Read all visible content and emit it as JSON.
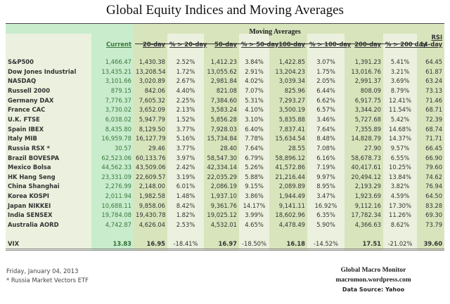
{
  "title": "Global Equity Indices and Moving Averages",
  "group_header": "Moving Averages",
  "columns": {
    "current": "Current",
    "ma20": "20-day",
    "pct20": "% > 20-day",
    "ma50": "50-day",
    "pct50": "% > 50-day",
    "ma100": "100-day",
    "pct100": "% > 100-day",
    "ma200": "200-day",
    "pct200": "% > 200 day",
    "rsi_top": "RSI",
    "rsi": "14-day"
  },
  "rows": [
    {
      "name": "S&P500",
      "current": "1,466.47",
      "ma20": "1,430.38",
      "pct20": "2.52%",
      "ma50": "1,412.23",
      "pct50": "3.84%",
      "ma100": "1,422.85",
      "pct100": "3.07%",
      "ma200": "1,391.23",
      "pct200": "5.41%",
      "rsi": "64.45"
    },
    {
      "name": "Dow Jones Industrial",
      "current": "13,435.21",
      "ma20": "13,208.54",
      "pct20": "1.72%",
      "ma50": "13,055.62",
      "pct50": "2.91%",
      "ma100": "13,204.23",
      "pct100": "1.75%",
      "ma200": "13,016.76",
      "pct200": "3.21%",
      "rsi": "61.87"
    },
    {
      "name": "NASDAQ",
      "current": "3,101.66",
      "ma20": "3,020.89",
      "pct20": "2.67%",
      "ma50": "2,981.84",
      "pct50": "4.02%",
      "ma100": "3,039.34",
      "pct100": "2.05%",
      "ma200": "2,991.37",
      "pct200": "3.69%",
      "rsi": "63.24"
    },
    {
      "name": "Russell 2000",
      "current": "879.15",
      "ma20": "842.06",
      "pct20": "4.40%",
      "ma50": "821.08",
      "pct50": "7.07%",
      "ma100": "825.96",
      "pct100": "6.44%",
      "ma200": "808.09",
      "pct200": "8.79%",
      "rsi": "73.13"
    },
    {
      "name": "Germany DAX",
      "current": "7,776.37",
      "ma20": "7,605.32",
      "pct20": "2.25%",
      "ma50": "7,384.60",
      "pct50": "5.31%",
      "ma100": "7,293.27",
      "pct100": "6.62%",
      "ma200": "6,917.75",
      "pct200": "12.41%",
      "rsi": "71.46"
    },
    {
      "name": "France CAC",
      "current": "3,730.02",
      "ma20": "3,652.09",
      "pct20": "2.13%",
      "ma50": "3,583.24",
      "pct50": "4.10%",
      "ma100": "3,500.19",
      "pct100": "6.57%",
      "ma200": "3,344.20",
      "pct200": "11.54%",
      "rsi": "68.71"
    },
    {
      "name": "U.K. FTSE",
      "current": "6,038.02",
      "ma20": "5,947.79",
      "pct20": "1.52%",
      "ma50": "5,856.28",
      "pct50": "3.10%",
      "ma100": "5,835.88",
      "pct100": "3.46%",
      "ma200": "5,727.68",
      "pct200": "5.42%",
      "rsi": "72.39"
    },
    {
      "name": "Spain IBEX",
      "current": "8,435.80",
      "ma20": "8,129.50",
      "pct20": "3.77%",
      "ma50": "7,928.03",
      "pct50": "6.40%",
      "ma100": "7,837.41",
      "pct100": "7.64%",
      "ma200": "7,355.89",
      "pct200": "14.68%",
      "rsi": "68.74"
    },
    {
      "name": "Italy  MIB",
      "current": "16,959.78",
      "ma20": "16,127.79",
      "pct20": "5.16%",
      "ma50": "15,734.84",
      "pct50": "7.78%",
      "ma100": "15,634.54",
      "pct100": "8.48%",
      "ma200": "14,828.79",
      "pct200": "14.37%",
      "rsi": "71.71"
    },
    {
      "name": "Russia RSX *",
      "current": "30.57",
      "ma20": "29.46",
      "pct20": "3.77%",
      "ma50": "28.40",
      "pct50": "7.64%",
      "ma100": "28.55",
      "pct100": "7.08%",
      "ma200": "27.90",
      "pct200": "9.57%",
      "rsi": "66.45"
    },
    {
      "name": "Brazil BOVESPA",
      "current": "62,523.06",
      "ma20": "60,133.76",
      "pct20": "3.97%",
      "ma50": "58,547.30",
      "pct50": "6.79%",
      "ma100": "58,896.12",
      "pct100": "6.16%",
      "ma200": "58,678.73",
      "pct200": "6.55%",
      "rsi": "66.90"
    },
    {
      "name": "Mexico Bolsa",
      "current": "44,562.33",
      "ma20": "43,509.06",
      "pct20": "2.42%",
      "ma50": "42,334.14",
      "pct50": "5.26%",
      "ma100": "41,572.86",
      "pct100": "7.19%",
      "ma200": "40,417.61",
      "pct200": "10.25%",
      "rsi": "79.60"
    },
    {
      "name": "HK  Hang Seng",
      "current": "23,331.09",
      "ma20": "22,609.57",
      "pct20": "3.19%",
      "ma50": "22,035.29",
      "pct50": "5.88%",
      "ma100": "21,216.44",
      "pct100": "9.97%",
      "ma200": "20,494.12",
      "pct200": "13.84%",
      "rsi": "74.62"
    },
    {
      "name": "China Shanghai",
      "current": "2,276.99",
      "ma20": "2,148.00",
      "pct20": "6.01%",
      "ma50": "2,086.19",
      "pct50": "9.15%",
      "ma100": "2,089.89",
      "pct100": "8.95%",
      "ma200": "2,193.29",
      "pct200": "3.82%",
      "rsi": "76.94"
    },
    {
      "name": "Korea KOSPI",
      "current": "2,011.94",
      "ma20": "1,982.58",
      "pct20": "1.48%",
      "ma50": "1,937.10",
      "pct50": "3.86%",
      "ma100": "1,944.49",
      "pct100": "3.47%",
      "ma200": "1,923.69",
      "pct200": "4.59%",
      "rsi": "64.50"
    },
    {
      "name": "Japan NIKKEI",
      "current": "10,688.11",
      "ma20": "9,858.06",
      "pct20": "8.42%",
      "ma50": "9,361.76",
      "pct50": "14.17%",
      "ma100": "9,141.11",
      "pct100": "16.92%",
      "ma200": "9,112.16",
      "pct200": "17.30%",
      "rsi": "83.28"
    },
    {
      "name": "India SENSEX",
      "current": "19,784.08",
      "ma20": "19,430.78",
      "pct20": "1.82%",
      "ma50": "19,025.12",
      "pct50": "3.99%",
      "ma100": "18,602.96",
      "pct100": "6.35%",
      "ma200": "17,782.34",
      "pct200": "11.26%",
      "rsi": "69.30"
    },
    {
      "name": "Australia AORD",
      "current": "4,742.87",
      "ma20": "4,626.04",
      "pct20": "2.53%",
      "ma50": "4,532.01",
      "pct50": "4.65%",
      "ma100": "4,478.49",
      "pct100": "5.90%",
      "ma200": "4,366.63",
      "pct200": "8.62%",
      "rsi": "73.79"
    }
  ],
  "vix": {
    "name": "VIX",
    "current": "13.83",
    "ma20": "16.95",
    "pct20": "-18.41%",
    "ma50": "16.97",
    "pct50": "-18.50%",
    "ma100": "16.18",
    "pct100": "-14.52%",
    "ma200": "17.51",
    "pct200": "-21.02%",
    "rsi": "39.60"
  },
  "colors": {
    "current_text": "#3a7a3a",
    "negative": "#e0675a",
    "ma_band": "#d8e4bc",
    "pct_band": "#ebf1de",
    "current_band": "#c9eccd"
  },
  "footer": {
    "date": "Friday, January 04, 2013",
    "note": "* Russia Market Vectors ETF",
    "brand": "Global Macro Monitor",
    "site": "macromon.wordpress.com",
    "source": "Data Source: Yahoo"
  }
}
